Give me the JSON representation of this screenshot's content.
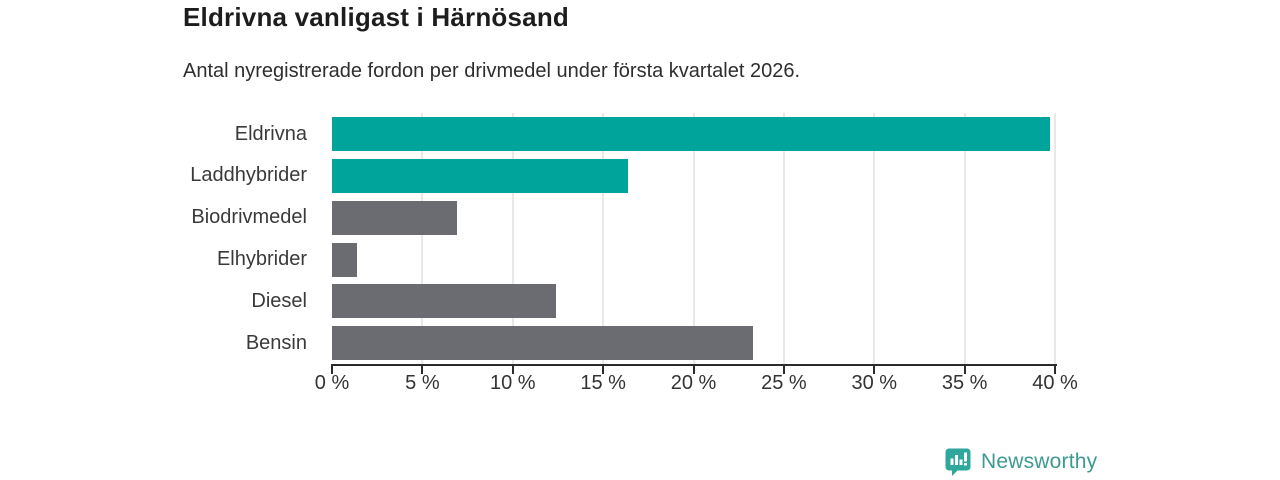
{
  "header": {
    "title": "Eldrivna vanligast i Härnösand",
    "subtitle": "Antal nyregistrerade fordon per drivmedel under första kvartalet 2026."
  },
  "chart_data": {
    "type": "bar",
    "orientation": "horizontal",
    "title": "Eldrivna vanligast i Härnösand",
    "subtitle": "Antal nyregistrerade fordon per drivmedel under första kvartalet 2026.",
    "categories": [
      "Eldrivna",
      "Laddhybrider",
      "Biodrivmedel",
      "Elhybrider",
      "Diesel",
      "Bensin"
    ],
    "values": [
      39.7,
      16.4,
      6.9,
      1.4,
      12.4,
      23.3
    ],
    "unit": "%",
    "xlim": [
      0,
      40
    ],
    "x_ticks": [
      0,
      5,
      10,
      15,
      20,
      25,
      30,
      35,
      40
    ],
    "x_tick_labels": [
      "0 %",
      "5 %",
      "10 %",
      "15 %",
      "20 %",
      "25 %",
      "30 %",
      "35 %",
      "40 %"
    ],
    "bar_colors": [
      "#00a49b",
      "#00a49b",
      "#6b6b72",
      "#6b6b72",
      "#6b6b72",
      "#6b6b72"
    ],
    "highlight_color": "#00a49b",
    "default_color": "#6b6b72",
    "grid": true,
    "legend": "none"
  },
  "footer": {
    "brand": "Newsworthy",
    "brand_color": "#3d9a93",
    "logo_icon": "bar-chart-bubble-icon",
    "logo_color": "#2fa79c"
  }
}
